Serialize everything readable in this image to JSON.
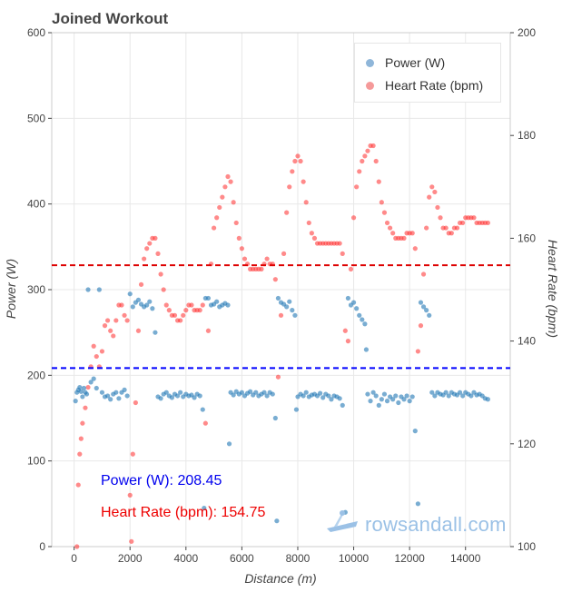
{
  "chart_data": {
    "type": "scatter",
    "title": "Joined Workout",
    "xlabel": "Distance (m)",
    "ylabel_left": "Power (W)",
    "ylabel_right": "Heart Rate (bpm)",
    "xlim": [
      -800,
      15600
    ],
    "ylim_left": [
      0,
      600
    ],
    "ylim_right": [
      100,
      200
    ],
    "x_ticks": [
      0,
      2000,
      4000,
      6000,
      8000,
      10000,
      12000,
      14000
    ],
    "y_left_ticks": [
      0,
      100,
      200,
      300,
      400,
      500,
      600
    ],
    "y_right_ticks": [
      100,
      120,
      140,
      160,
      180,
      200
    ],
    "grid": true,
    "legend_position": "top-right",
    "colors": {
      "power": "#1f77b4",
      "heart_rate": "#ff2a2a",
      "power_avg_line": "#0000ff",
      "hr_avg_line": "#dd0000"
    },
    "series": [
      {
        "name": "Power (W)",
        "axis": "left",
        "points": [
          [
            50,
            170
          ],
          [
            100,
            180
          ],
          [
            150,
            183
          ],
          [
            200,
            186
          ],
          [
            250,
            181
          ],
          [
            300,
            175
          ],
          [
            350,
            185
          ],
          [
            400,
            180
          ],
          [
            450,
            178
          ],
          [
            500,
            300
          ],
          [
            600,
            192
          ],
          [
            700,
            196
          ],
          [
            800,
            185
          ],
          [
            900,
            300
          ],
          [
            1000,
            180
          ],
          [
            1100,
            175
          ],
          [
            1200,
            176
          ],
          [
            1300,
            172
          ],
          [
            1400,
            178
          ],
          [
            1500,
            180
          ],
          [
            1600,
            173
          ],
          [
            1700,
            180
          ],
          [
            1800,
            183
          ],
          [
            1900,
            176
          ],
          [
            2000,
            295
          ],
          [
            2100,
            280
          ],
          [
            2200,
            285
          ],
          [
            2300,
            288
          ],
          [
            2400,
            283
          ],
          [
            2500,
            280
          ],
          [
            2600,
            282
          ],
          [
            2700,
            286
          ],
          [
            2800,
            278
          ],
          [
            2900,
            250
          ],
          [
            3000,
            175
          ],
          [
            3100,
            173
          ],
          [
            3200,
            178
          ],
          [
            3300,
            180
          ],
          [
            3400,
            176
          ],
          [
            3500,
            174
          ],
          [
            3600,
            178
          ],
          [
            3700,
            176
          ],
          [
            3800,
            180
          ],
          [
            3900,
            175
          ],
          [
            4000,
            178
          ],
          [
            4100,
            176
          ],
          [
            4200,
            177
          ],
          [
            4300,
            174
          ],
          [
            4400,
            178
          ],
          [
            4500,
            176
          ],
          [
            4600,
            160
          ],
          [
            4650,
            45
          ],
          [
            4700,
            290
          ],
          [
            4800,
            290
          ],
          [
            4900,
            282
          ],
          [
            5000,
            283
          ],
          [
            5100,
            286
          ],
          [
            5200,
            280
          ],
          [
            5300,
            282
          ],
          [
            5400,
            284
          ],
          [
            5500,
            282
          ],
          [
            5550,
            120
          ],
          [
            5600,
            180
          ],
          [
            5700,
            177
          ],
          [
            5800,
            181
          ],
          [
            5900,
            178
          ],
          [
            6000,
            180
          ],
          [
            6100,
            176
          ],
          [
            6200,
            179
          ],
          [
            6300,
            181
          ],
          [
            6400,
            177
          ],
          [
            6500,
            180
          ],
          [
            6600,
            176
          ],
          [
            6700,
            178
          ],
          [
            6800,
            180
          ],
          [
            6900,
            176
          ],
          [
            7000,
            180
          ],
          [
            7100,
            178
          ],
          [
            7200,
            150
          ],
          [
            7250,
            30
          ],
          [
            7300,
            290
          ],
          [
            7400,
            285
          ],
          [
            7500,
            283
          ],
          [
            7600,
            280
          ],
          [
            7700,
            286
          ],
          [
            7800,
            276
          ],
          [
            7900,
            270
          ],
          [
            7950,
            160
          ],
          [
            8000,
            175
          ],
          [
            8100,
            178
          ],
          [
            8200,
            176
          ],
          [
            8300,
            180
          ],
          [
            8400,
            175
          ],
          [
            8500,
            177
          ],
          [
            8600,
            178
          ],
          [
            8700,
            176
          ],
          [
            8800,
            179
          ],
          [
            8900,
            174
          ],
          [
            9000,
            178
          ],
          [
            9100,
            176
          ],
          [
            9200,
            172
          ],
          [
            9300,
            176
          ],
          [
            9400,
            175
          ],
          [
            9500,
            173
          ],
          [
            9600,
            165
          ],
          [
            9700,
            40
          ],
          [
            9800,
            290
          ],
          [
            9900,
            282
          ],
          [
            10000,
            285
          ],
          [
            10100,
            278
          ],
          [
            10200,
            270
          ],
          [
            10300,
            265
          ],
          [
            10400,
            260
          ],
          [
            10450,
            230
          ],
          [
            10500,
            178
          ],
          [
            10600,
            170
          ],
          [
            10700,
            180
          ],
          [
            10800,
            176
          ],
          [
            10900,
            165
          ],
          [
            11000,
            172
          ],
          [
            11100,
            178
          ],
          [
            11200,
            170
          ],
          [
            11300,
            175
          ],
          [
            11400,
            172
          ],
          [
            11500,
            176
          ],
          [
            11600,
            168
          ],
          [
            11700,
            175
          ],
          [
            11800,
            172
          ],
          [
            11900,
            176
          ],
          [
            12000,
            170
          ],
          [
            12100,
            175
          ],
          [
            12200,
            135
          ],
          [
            12300,
            50
          ],
          [
            12400,
            285
          ],
          [
            12500,
            280
          ],
          [
            12600,
            276
          ],
          [
            12700,
            270
          ],
          [
            12800,
            180
          ],
          [
            12900,
            176
          ],
          [
            13000,
            180
          ],
          [
            13100,
            178
          ],
          [
            13200,
            177
          ],
          [
            13300,
            180
          ],
          [
            13400,
            176
          ],
          [
            13500,
            180
          ],
          [
            13600,
            178
          ],
          [
            13700,
            177
          ],
          [
            13800,
            180
          ],
          [
            13900,
            176
          ],
          [
            14000,
            180
          ],
          [
            14100,
            178
          ],
          [
            14200,
            176
          ],
          [
            14300,
            180
          ],
          [
            14400,
            177
          ],
          [
            14500,
            178
          ],
          [
            14600,
            176
          ],
          [
            14700,
            173
          ],
          [
            14800,
            172
          ]
        ]
      },
      {
        "name": "Heart Rate (bpm)",
        "axis": "right",
        "points": [
          [
            100,
            100
          ],
          [
            150,
            112
          ],
          [
            200,
            118
          ],
          [
            250,
            121
          ],
          [
            300,
            124
          ],
          [
            400,
            127
          ],
          [
            500,
            131
          ],
          [
            600,
            135
          ],
          [
            700,
            139
          ],
          [
            800,
            137
          ],
          [
            900,
            135
          ],
          [
            1000,
            138
          ],
          [
            1100,
            143
          ],
          [
            1200,
            144
          ],
          [
            1300,
            142
          ],
          [
            1400,
            141
          ],
          [
            1500,
            144
          ],
          [
            1600,
            147
          ],
          [
            1700,
            147
          ],
          [
            1800,
            145
          ],
          [
            1900,
            144
          ],
          [
            2000,
            110
          ],
          [
            2050,
            101
          ],
          [
            2100,
            118
          ],
          [
            2200,
            128
          ],
          [
            2300,
            142
          ],
          [
            2400,
            151
          ],
          [
            2500,
            156
          ],
          [
            2600,
            158
          ],
          [
            2700,
            159
          ],
          [
            2800,
            160
          ],
          [
            2900,
            160
          ],
          [
            3000,
            157
          ],
          [
            3100,
            153
          ],
          [
            3200,
            150
          ],
          [
            3300,
            147
          ],
          [
            3400,
            146
          ],
          [
            3500,
            145
          ],
          [
            3600,
            145
          ],
          [
            3700,
            144
          ],
          [
            3800,
            144
          ],
          [
            3900,
            145
          ],
          [
            4000,
            146
          ],
          [
            4100,
            147
          ],
          [
            4200,
            147
          ],
          [
            4300,
            146
          ],
          [
            4400,
            146
          ],
          [
            4500,
            146
          ],
          [
            4600,
            147
          ],
          [
            4700,
            124
          ],
          [
            4800,
            142
          ],
          [
            4900,
            155
          ],
          [
            5000,
            162
          ],
          [
            5100,
            164
          ],
          [
            5200,
            166
          ],
          [
            5300,
            168
          ],
          [
            5400,
            170
          ],
          [
            5500,
            172
          ],
          [
            5600,
            171
          ],
          [
            5700,
            167
          ],
          [
            5800,
            163
          ],
          [
            5900,
            160
          ],
          [
            6000,
            158
          ],
          [
            6100,
            156
          ],
          [
            6200,
            155
          ],
          [
            6300,
            154
          ],
          [
            6400,
            154
          ],
          [
            6500,
            154
          ],
          [
            6600,
            154
          ],
          [
            6700,
            154
          ],
          [
            6800,
            155
          ],
          [
            6900,
            156
          ],
          [
            7000,
            155
          ],
          [
            7100,
            155
          ],
          [
            7200,
            152
          ],
          [
            7300,
            133
          ],
          [
            7400,
            145
          ],
          [
            7500,
            157
          ],
          [
            7600,
            165
          ],
          [
            7700,
            170
          ],
          [
            7800,
            173
          ],
          [
            7900,
            175
          ],
          [
            8000,
            176
          ],
          [
            8100,
            175
          ],
          [
            8200,
            171
          ],
          [
            8300,
            167
          ],
          [
            8400,
            163
          ],
          [
            8500,
            161
          ],
          [
            8600,
            160
          ],
          [
            8700,
            159
          ],
          [
            8800,
            159
          ],
          [
            8900,
            159
          ],
          [
            9000,
            159
          ],
          [
            9100,
            159
          ],
          [
            9200,
            159
          ],
          [
            9300,
            159
          ],
          [
            9400,
            159
          ],
          [
            9500,
            159
          ],
          [
            9600,
            157
          ],
          [
            9700,
            142
          ],
          [
            9800,
            140
          ],
          [
            9900,
            154
          ],
          [
            10000,
            164
          ],
          [
            10100,
            170
          ],
          [
            10200,
            173
          ],
          [
            10300,
            175
          ],
          [
            10400,
            176
          ],
          [
            10500,
            177
          ],
          [
            10600,
            178
          ],
          [
            10700,
            178
          ],
          [
            10800,
            175
          ],
          [
            10900,
            171
          ],
          [
            11000,
            167
          ],
          [
            11100,
            165
          ],
          [
            11200,
            163
          ],
          [
            11300,
            162
          ],
          [
            11400,
            161
          ],
          [
            11500,
            160
          ],
          [
            11600,
            160
          ],
          [
            11700,
            160
          ],
          [
            11800,
            160
          ],
          [
            11900,
            161
          ],
          [
            12000,
            161
          ],
          [
            12100,
            161
          ],
          [
            12200,
            158
          ],
          [
            12300,
            138
          ],
          [
            12400,
            143
          ],
          [
            12500,
            153
          ],
          [
            12600,
            162
          ],
          [
            12700,
            168
          ],
          [
            12800,
            170
          ],
          [
            12900,
            169
          ],
          [
            13000,
            166
          ],
          [
            13100,
            164
          ],
          [
            13200,
            162
          ],
          [
            13300,
            162
          ],
          [
            13400,
            161
          ],
          [
            13500,
            161
          ],
          [
            13600,
            162
          ],
          [
            13700,
            162
          ],
          [
            13800,
            163
          ],
          [
            13900,
            163
          ],
          [
            14000,
            164
          ],
          [
            14100,
            164
          ],
          [
            14200,
            164
          ],
          [
            14300,
            164
          ],
          [
            14400,
            163
          ],
          [
            14500,
            163
          ],
          [
            14600,
            163
          ],
          [
            14700,
            163
          ],
          [
            14800,
            163
          ]
        ]
      }
    ],
    "avg_lines": {
      "power": 208.45,
      "heart_rate": 154.75
    }
  },
  "stats": {
    "power_text": "Power (W): 208.45",
    "hr_text": "Heart Rate (bpm): 154.75"
  },
  "watermark": {
    "text": "rowsandall.com",
    "icon": "rowing-boat-icon"
  }
}
